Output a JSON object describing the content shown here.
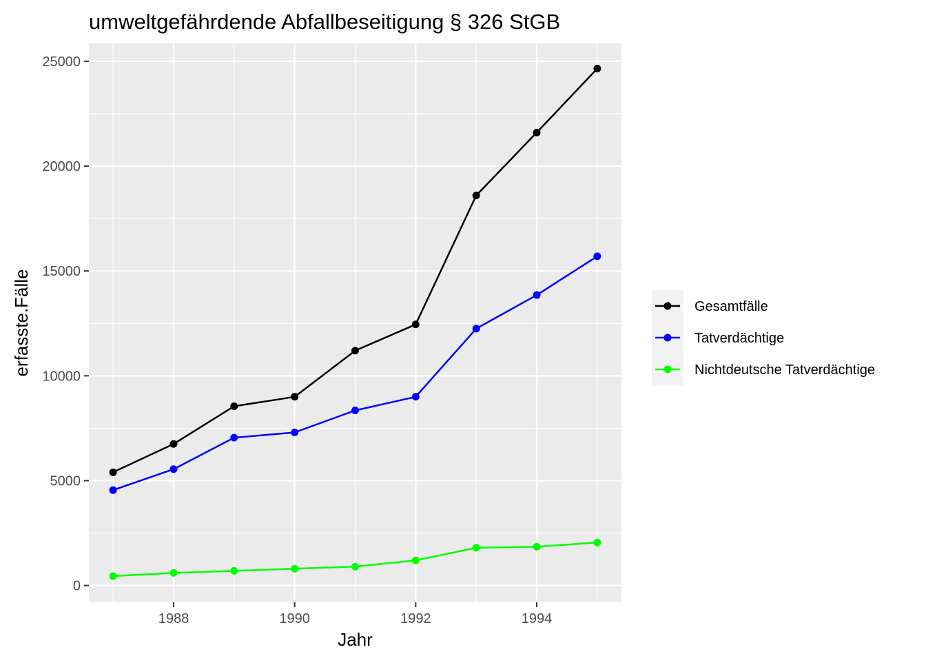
{
  "chart_data": {
    "type": "line",
    "title": "umweltgefährdende Abfallbeseitigung § 326 StGB",
    "xlabel": "Jahr",
    "ylabel": "erfasste.Fälle",
    "x": [
      1987,
      1988,
      1989,
      1990,
      1991,
      1992,
      1993,
      1994,
      1995
    ],
    "xlim": [
      1986.6,
      1995.4
    ],
    "ylim": [
      -800,
      25850
    ],
    "x_ticks": [
      1988,
      1990,
      1992,
      1994
    ],
    "y_ticks": [
      0,
      5000,
      10000,
      15000,
      20000,
      25000
    ],
    "x_tick_labels": [
      "1988",
      "1990",
      "1992",
      "1994"
    ],
    "y_tick_labels": [
      "0",
      "5000",
      "10000",
      "15000",
      "20000",
      "25000"
    ],
    "grid": true,
    "legend_position": "right",
    "series": [
      {
        "name": "Gesamtfälle",
        "color": "#000000",
        "values": [
          5400,
          6750,
          8550,
          9000,
          11200,
          12450,
          18600,
          21600,
          24650
        ]
      },
      {
        "name": "Tatverdächtige",
        "color": "#0000ff",
        "values": [
          4550,
          5550,
          7050,
          7300,
          8350,
          9000,
          12250,
          13850,
          15700
        ]
      },
      {
        "name": "Nichtdeutsche Tatverdächtige",
        "color": "#00ff00",
        "values": [
          450,
          600,
          700,
          800,
          900,
          1200,
          1800,
          1850,
          2050
        ]
      }
    ]
  }
}
